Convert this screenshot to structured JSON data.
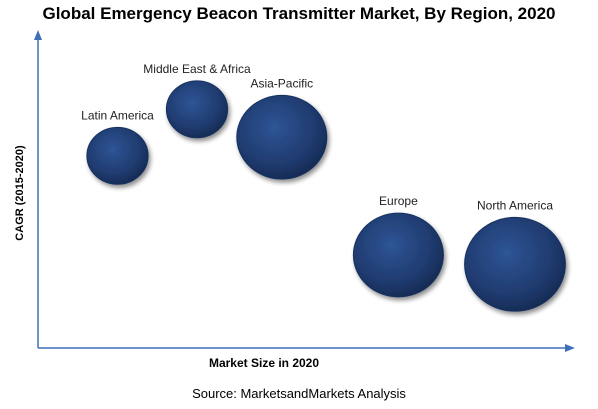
{
  "chart_data": {
    "type": "scatter",
    "title": "Global Emergency Beacon Transmitter Market, By Region, 2020",
    "xlabel": "Market Size in 2020",
    "ylabel": "CAGR (2015-2020)",
    "grid": false,
    "points": [
      {
        "label": "Latin America",
        "x": 1.5,
        "y": 6.2,
        "size": 0.85
      },
      {
        "label": "Middle East & Africa",
        "x": 3.0,
        "y": 7.7,
        "size": 0.85
      },
      {
        "label": "Asia-Pacific",
        "x": 4.6,
        "y": 6.8,
        "size": 1.25
      },
      {
        "label": "Europe",
        "x": 6.8,
        "y": 3.0,
        "size": 1.25
      },
      {
        "label": "North America",
        "x": 9.0,
        "y": 2.7,
        "size": 1.4
      }
    ],
    "xlim": [
      0,
      10
    ],
    "ylim": [
      0,
      10
    ],
    "bubble_color": "#1f3a6e"
  },
  "source": "Source: MarketsandMarkets Analysis"
}
